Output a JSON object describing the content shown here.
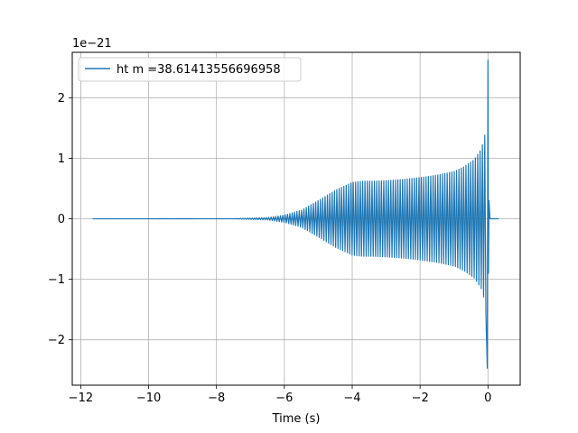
{
  "chart_data": {
    "type": "line",
    "title": "",
    "xlabel": "Time (s)",
    "ylabel": "",
    "y_offset_label": "1e−21",
    "xlim": [
      -12.25,
      0.95
    ],
    "ylim": [
      -2.75,
      2.75
    ],
    "xticks": [
      -12,
      -10,
      -8,
      -6,
      -4,
      -2,
      0
    ],
    "xtick_labels": [
      "−12",
      "−10",
      "−8",
      "−6",
      "−4",
      "−2",
      "0"
    ],
    "yticks": [
      -2,
      -1,
      0,
      1,
      2
    ],
    "ytick_labels": [
      "−2",
      "−1",
      "0",
      "1",
      "2"
    ],
    "grid": true,
    "legend_position": "top-left",
    "series": [
      {
        "name": "ht m =38.61413556696958",
        "color": "#1f77b4",
        "x_range": [
          -11.65,
          0.32
        ],
        "envelope": {
          "t": [
            -11.65,
            -7.5,
            -6.5,
            -6.0,
            -5.5,
            -5.0,
            -4.5,
            -4.0,
            -3.7,
            -3.4,
            -3.0,
            -2.5,
            -2.0,
            -1.5,
            -1.0,
            -0.7,
            -0.4,
            -0.2,
            -0.1,
            -0.04,
            -0.02,
            0.0,
            0.02,
            0.05,
            0.32
          ],
          "amplitude": [
            0.0,
            0.003,
            0.02,
            0.06,
            0.14,
            0.3,
            0.47,
            0.6,
            0.62,
            0.62,
            0.63,
            0.65,
            0.68,
            0.72,
            0.78,
            0.86,
            0.98,
            1.15,
            1.35,
            1.7,
            2.1,
            2.6,
            1.0,
            0.02,
            0.0
          ],
          "upper_peak": 2.62,
          "lower_peak": -2.47
        }
      }
    ]
  }
}
